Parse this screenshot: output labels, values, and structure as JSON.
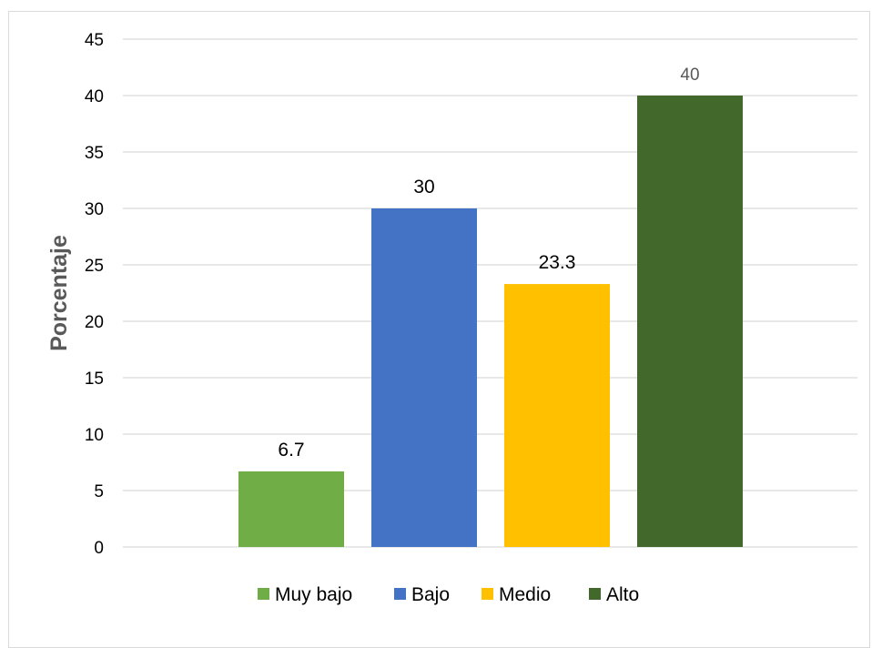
{
  "chart_data": {
    "type": "bar",
    "categories": [
      "Muy bajo",
      "Bajo",
      "Medio",
      "Alto"
    ],
    "values": [
      6.7,
      30,
      23.3,
      40
    ],
    "data_labels": [
      "6.7",
      "30",
      "23.3",
      "40"
    ],
    "colors": [
      "#70ad47",
      "#4472c4",
      "#ffc000",
      "#43682b"
    ],
    "title": "",
    "xlabel": "",
    "ylabel": "Porcentaje",
    "ylim": [
      0,
      45
    ],
    "yticks": [
      0,
      5,
      10,
      15,
      20,
      25,
      30,
      35,
      40,
      45
    ],
    "grid": true,
    "legend": "bottom",
    "legend_entries": [
      "Muy bajo",
      "Bajo",
      "Medio",
      "Alto"
    ]
  }
}
